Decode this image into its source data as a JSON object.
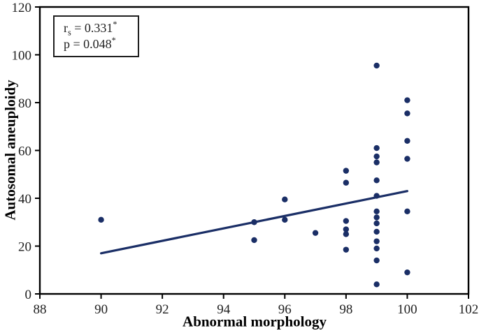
{
  "figure": {
    "background": "#ffffff",
    "annotation": {
      "line1": {
        "base": "r",
        "sub": "s",
        "mid": " = 0.331",
        "sup": "*"
      },
      "line2": {
        "base": "p = 0.048",
        "sup": "*"
      }
    }
  },
  "chart_data": {
    "type": "scatter",
    "title": "",
    "xlabel": "Abnormal morphology",
    "ylabel": "Autosomal aneuploidy",
    "xlim": [
      88,
      102
    ],
    "ylim": [
      0,
      120
    ],
    "x_ticks": [
      88,
      90,
      92,
      94,
      96,
      98,
      100,
      102
    ],
    "y_ticks": [
      0,
      20,
      40,
      60,
      80,
      100,
      120
    ],
    "grid": false,
    "legend": false,
    "annotation_text": "rs = 0.331*, p = 0.048*",
    "points": [
      [
        90,
        31
      ],
      [
        95,
        30
      ],
      [
        95,
        22.5
      ],
      [
        96,
        39.5
      ],
      [
        96,
        31
      ],
      [
        97,
        25.5
      ],
      [
        98,
        51.5
      ],
      [
        98,
        46.5
      ],
      [
        98,
        30.5
      ],
      [
        98,
        27
      ],
      [
        98,
        25
      ],
      [
        98,
        18.5
      ],
      [
        99,
        95.5
      ],
      [
        99,
        61
      ],
      [
        99,
        57.5
      ],
      [
        99,
        55
      ],
      [
        99,
        47.5
      ],
      [
        99,
        41
      ],
      [
        99,
        34.5
      ],
      [
        99,
        32
      ],
      [
        99,
        29.5
      ],
      [
        99,
        26
      ],
      [
        99,
        22
      ],
      [
        99,
        19
      ],
      [
        99,
        14
      ],
      [
        99,
        4
      ],
      [
        100,
        81
      ],
      [
        100,
        75.5
      ],
      [
        100,
        64
      ],
      [
        100,
        56.5
      ],
      [
        100,
        34.5
      ],
      [
        100,
        9
      ]
    ],
    "trendline": {
      "x1": 90,
      "y1": 17,
      "x2": 100,
      "y2": 43
    },
    "colors": {
      "points": "#1a2e66",
      "trendline": "#1a2e66",
      "axis": "#000000",
      "tick_labels": "#1f1f1f"
    }
  }
}
